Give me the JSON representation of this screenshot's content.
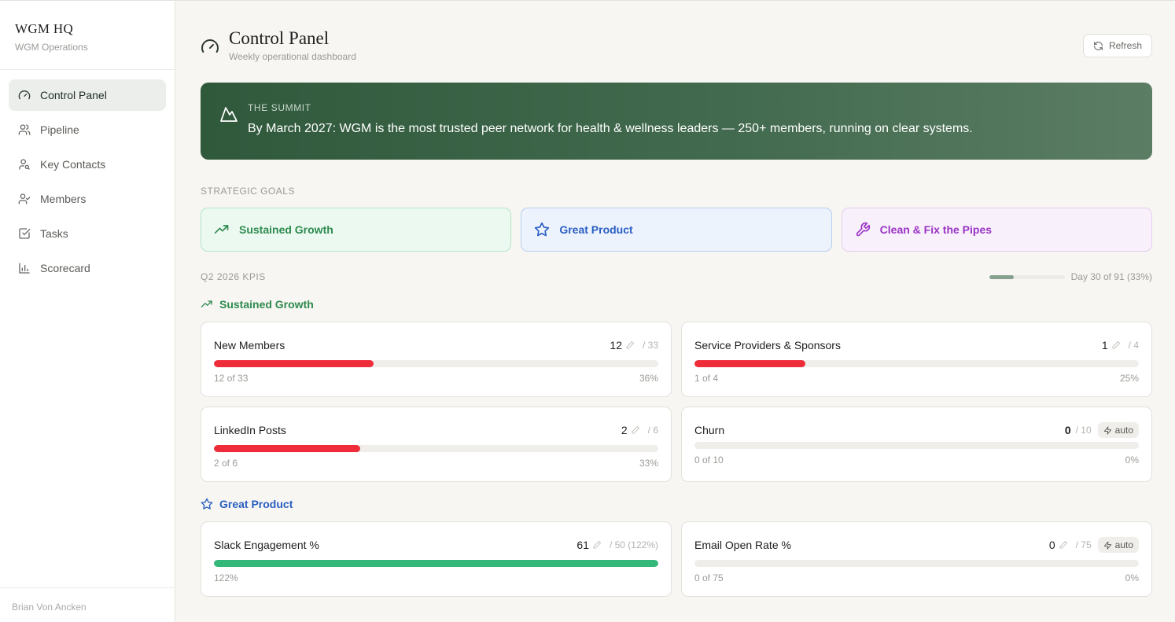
{
  "sidebar": {
    "brand_title": "WGM HQ",
    "brand_subtitle": "WGM Operations",
    "items": [
      {
        "label": "Control Panel",
        "icon": "gauge-icon",
        "active": true
      },
      {
        "label": "Pipeline",
        "icon": "users-icon"
      },
      {
        "label": "Key Contacts",
        "icon": "user-search-icon"
      },
      {
        "label": "Members",
        "icon": "user-check-icon"
      },
      {
        "label": "Tasks",
        "icon": "checkbox-icon"
      },
      {
        "label": "Scorecard",
        "icon": "bar-chart-icon"
      }
    ],
    "footer_user": "Brian Von Ancken"
  },
  "header": {
    "title": "Control Panel",
    "subtitle": "Weekly operational dashboard",
    "refresh_label": "Refresh"
  },
  "summit": {
    "label": "THE SUMMIT",
    "text": "By March 2027: WGM is the most trusted peer network for health & wellness leaders — 250+ members, running on clear systems."
  },
  "goals": {
    "label": "STRATEGIC GOALS",
    "items": [
      {
        "label": "Sustained Growth",
        "icon": "trending-up-icon"
      },
      {
        "label": "Great Product",
        "icon": "star-icon"
      },
      {
        "label": "Clean & Fix the Pipes",
        "icon": "wrench-icon"
      }
    ]
  },
  "kpis": {
    "label": "Q2 2026 KPIS",
    "quarter_progress_text": "Day 30 of 91 (33%)",
    "quarter_progress": 0.33,
    "groups": [
      {
        "title": "Sustained Growth",
        "cards": [
          {
            "name": "New Members",
            "value": "12",
            "target": "/ 33",
            "progress": 0.36,
            "foot_left": "12 of 33",
            "foot_right": "36%"
          },
          {
            "name": "Service Providers & Sponsors",
            "value": "1",
            "target": "/ 4",
            "progress": 0.25,
            "foot_left": "1 of 4",
            "foot_right": "25%"
          },
          {
            "name": "LinkedIn Posts",
            "value": "2",
            "target": "/ 6",
            "progress": 0.33,
            "foot_left": "2 of 6",
            "foot_right": "33%"
          },
          {
            "name": "Churn",
            "value": "0",
            "target": "/ 10",
            "badge": "auto",
            "progress": 0,
            "foot_left": "0 of 10",
            "foot_right": "0%"
          }
        ]
      },
      {
        "title": "Great Product",
        "cards": [
          {
            "name": "Slack Engagement %",
            "value": "61",
            "target": "/ 50 (122%)",
            "progress": 1.0,
            "foot_left": "122%",
            "foot_right": ""
          },
          {
            "name": "Email Open Rate %",
            "value": "0",
            "target": "/ 75",
            "badge": "auto",
            "progress": 0,
            "foot_left": "0 of 75",
            "foot_right": "0%"
          }
        ]
      }
    ]
  },
  "colors": {
    "accent_green": "#2e8a4f",
    "accent_blue": "#2a5fc2",
    "accent_purple": "#9a33c4",
    "progress_red": "#ef2d3a",
    "progress_green": "#34b87a"
  }
}
